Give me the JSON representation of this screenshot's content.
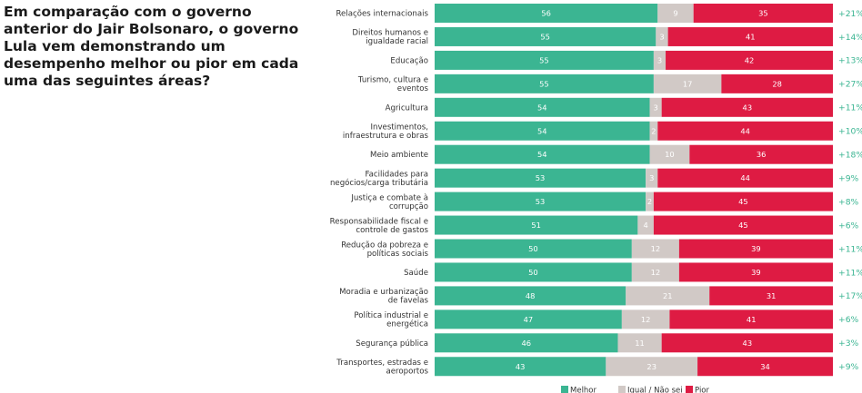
{
  "question": "Em comparação com o governo anterior do Jair Bolsonaro, o governo Lula vem demonstrando um desempenho melhor ou pior em cada uma das seguintes áreas?",
  "colors": {
    "melhor": "#3bb592",
    "igual": "#d1c9c6",
    "pior": "#de1b43",
    "diff": "#3bb592"
  },
  "chart_data": {
    "type": "bar",
    "orientation": "horizontal",
    "stacked": true,
    "categories": [
      [
        "Relações internacionais"
      ],
      [
        "Direitos humanos e",
        "igualdade racial"
      ],
      [
        "Educação"
      ],
      [
        "Turismo, cultura e",
        "eventos"
      ],
      [
        "Agricultura"
      ],
      [
        "Investimentos,",
        "infraestrutura e obras"
      ],
      [
        "Meio ambiente"
      ],
      [
        "Facilidades para",
        "negócios/carga tributária"
      ],
      [
        "Justiça e combate à",
        "corrupção"
      ],
      [
        "Responsabilidade fiscal e",
        "controle de gastos"
      ],
      [
        "Redução da pobreza e",
        "políticas sociais"
      ],
      [
        "Saúde"
      ],
      [
        "Moradia e urbanização",
        "de favelas"
      ],
      [
        "Política industrial e",
        "energética"
      ],
      [
        "Segurança pública"
      ],
      [
        "Transportes, estradas e",
        "aeroportos"
      ]
    ],
    "series": [
      {
        "name": "Melhor",
        "values": [
          56,
          55,
          55,
          55,
          54,
          54,
          54,
          53,
          53,
          51,
          50,
          50,
          48,
          47,
          46,
          43
        ]
      },
      {
        "name": "Igual / Não sei",
        "values": [
          9,
          3,
          3,
          17,
          3,
          2,
          10,
          3,
          2,
          4,
          12,
          12,
          21,
          12,
          11,
          23
        ]
      },
      {
        "name": "Pior",
        "values": [
          35,
          41,
          42,
          28,
          43,
          44,
          36,
          44,
          45,
          45,
          39,
          39,
          31,
          41,
          43,
          34
        ]
      }
    ],
    "differences": [
      "+21%",
      "+14%",
      "+13%",
      "+27%",
      "+11%",
      "+10%",
      "+18%",
      "+9%",
      "+8%",
      "+6%",
      "+11%",
      "+11%",
      "+17%",
      "+6%",
      "+3%",
      "+9%"
    ],
    "xlim": [
      0,
      100
    ],
    "grid": false,
    "legend_position": "bottom"
  }
}
